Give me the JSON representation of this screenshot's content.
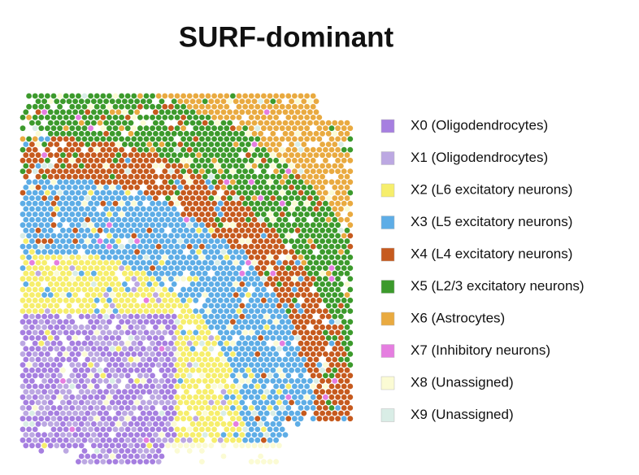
{
  "chart_data": {
    "type": "spatial",
    "title": "SURF-dominant",
    "series": [
      {
        "name": "X0 (Oligodendrocytes)",
        "color": "#a67fe0"
      },
      {
        "name": "X1 (Oligodendrocytes)",
        "color": "#bca8e2"
      },
      {
        "name": "X2 (L6 excitatory neurons)",
        "color": "#f6ee6c"
      },
      {
        "name": "X3 (L5 excitatory neurons)",
        "color": "#5eade6"
      },
      {
        "name": "X4 (L4 excitatory neurons)",
        "color": "#c65a1e"
      },
      {
        "name": "X5 (L2/3 excitatory neurons)",
        "color": "#3c9a2c"
      },
      {
        "name": "X6 (Astrocytes)",
        "color": "#e9aa40"
      },
      {
        "name": "X7 (Inhibitory neurons)",
        "color": "#e57ee0"
      },
      {
        "name": "X8 (Unassigned)",
        "color": "#fbfbd4"
      },
      {
        "name": "X9 (Unassigned)",
        "color": "#d9ede6"
      }
    ]
  }
}
